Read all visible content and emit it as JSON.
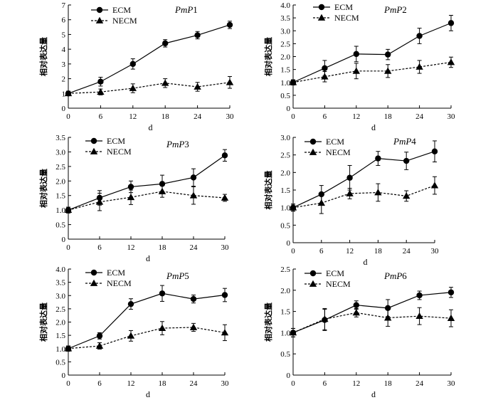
{
  "chart_data": [
    {
      "type": "line",
      "title_prefix": "PmP",
      "title_num": "1",
      "xlabel": "d",
      "ylabel": "相对表达量",
      "x": [
        0,
        6,
        12,
        18,
        24,
        30
      ],
      "xlim": [
        0,
        30
      ],
      "ylim": [
        0,
        7
      ],
      "yticks": [
        "0",
        "1",
        "2",
        "3",
        "4",
        "5",
        "6",
        "7"
      ],
      "xticks": [
        "0",
        "6",
        "12",
        "18",
        "24",
        "30"
      ],
      "series": [
        {
          "name": "ECM",
          "marker": "circle",
          "dash": "solid",
          "values": [
            1.0,
            1.8,
            3.0,
            4.4,
            4.95,
            5.65
          ],
          "errors": [
            0.15,
            0.3,
            0.35,
            0.25,
            0.25,
            0.25
          ]
        },
        {
          "name": "NECM",
          "marker": "triangle",
          "dash": "dashed",
          "values": [
            1.0,
            1.1,
            1.35,
            1.7,
            1.45,
            1.75
          ],
          "errors": [
            0.15,
            0.2,
            0.3,
            0.3,
            0.3,
            0.4
          ]
        }
      ]
    },
    {
      "type": "line",
      "title_prefix": "PmP",
      "title_num": "2",
      "xlabel": "d",
      "ylabel": "相对表达量",
      "x": [
        0,
        6,
        12,
        18,
        24,
        30
      ],
      "xlim": [
        0,
        30
      ],
      "ylim": [
        0,
        4
      ],
      "yticks": [
        "0",
        "0.5",
        "1.0",
        "1.5",
        "2.0",
        "2.5",
        "3.0",
        "3.5",
        "4.0"
      ],
      "xticks": [
        "0",
        "6",
        "12",
        "18",
        "24",
        "30"
      ],
      "series": [
        {
          "name": "ECM",
          "marker": "circle",
          "dash": "solid",
          "values": [
            1.0,
            1.55,
            2.1,
            2.08,
            2.8,
            3.3
          ],
          "errors": [
            0.1,
            0.3,
            0.3,
            0.2,
            0.3,
            0.3
          ]
        },
        {
          "name": "NECM",
          "marker": "triangle",
          "dash": "dashed",
          "values": [
            1.0,
            1.22,
            1.44,
            1.44,
            1.6,
            1.78
          ],
          "errors": [
            0.1,
            0.2,
            0.3,
            0.25,
            0.25,
            0.2
          ]
        }
      ]
    },
    {
      "type": "line",
      "title_prefix": "PmP",
      "title_num": "3",
      "xlabel": "d",
      "ylabel": "相对表达量",
      "x": [
        0,
        6,
        12,
        18,
        24,
        30
      ],
      "xlim": [
        0,
        30
      ],
      "ylim": [
        0,
        3.5
      ],
      "yticks": [
        "0",
        "0.5",
        "1.0",
        "1.5",
        "2.0",
        "2.5",
        "3.0",
        "3.5"
      ],
      "xticks": [
        "0",
        "6",
        "12",
        "18",
        "24",
        "30"
      ],
      "series": [
        {
          "name": "ECM",
          "marker": "circle",
          "dash": "solid",
          "values": [
            1.0,
            1.42,
            1.8,
            1.9,
            2.12,
            2.88
          ],
          "errors": [
            0.1,
            0.25,
            0.2,
            0.3,
            0.3,
            0.2
          ]
        },
        {
          "name": "NECM",
          "marker": "triangle",
          "dash": "dashed",
          "values": [
            1.0,
            1.28,
            1.44,
            1.64,
            1.5,
            1.42
          ],
          "errors": [
            0.1,
            0.3,
            0.25,
            0.2,
            0.3,
            0.12
          ]
        }
      ]
    },
    {
      "type": "line",
      "title_prefix": "PmP",
      "title_num": "4",
      "xlabel": "d",
      "ylabel": "相对表达量",
      "x": [
        0,
        6,
        12,
        18,
        24,
        30
      ],
      "xlim": [
        0,
        30
      ],
      "ylim": [
        0,
        3.0
      ],
      "yticks": [
        "0",
        "0.5",
        "1.0",
        "1.5",
        "2.0",
        "2.5",
        "3.0"
      ],
      "xticks": [
        "0",
        "6",
        "12",
        "18",
        "24",
        "30"
      ],
      "series": [
        {
          "name": "ECM",
          "marker": "circle",
          "dash": "solid",
          "values": [
            1.0,
            1.38,
            1.85,
            2.4,
            2.33,
            2.6
          ],
          "errors": [
            0.1,
            0.25,
            0.35,
            0.2,
            0.25,
            0.3
          ]
        },
        {
          "name": "NECM",
          "marker": "triangle",
          "dash": "dashed",
          "values": [
            1.0,
            1.13,
            1.4,
            1.43,
            1.33,
            1.63
          ],
          "errors": [
            0.1,
            0.3,
            0.15,
            0.25,
            0.15,
            0.25
          ]
        }
      ]
    },
    {
      "type": "line",
      "title_prefix": "PmP",
      "title_num": "5",
      "xlabel": "d",
      "ylabel": "相对表达量",
      "x": [
        0,
        6,
        12,
        18,
        24,
        30
      ],
      "xlim": [
        0,
        30
      ],
      "ylim": [
        0,
        4.0
      ],
      "yticks": [
        "0",
        "0.5",
        "1.0",
        "1.5",
        "2.0",
        "2.5",
        "3.0",
        "3.5",
        "4.0"
      ],
      "xticks": [
        "0",
        "6",
        "12",
        "18",
        "24",
        "30"
      ],
      "series": [
        {
          "name": "ECM",
          "marker": "circle",
          "dash": "solid",
          "values": [
            1.0,
            1.48,
            2.68,
            3.08,
            2.87,
            3.02
          ],
          "errors": [
            0.1,
            0.12,
            0.2,
            0.3,
            0.15,
            0.25
          ]
        },
        {
          "name": "NECM",
          "marker": "triangle",
          "dash": "dashed",
          "values": [
            1.0,
            1.1,
            1.48,
            1.77,
            1.8,
            1.6
          ],
          "errors": [
            0.1,
            0.12,
            0.2,
            0.25,
            0.15,
            0.3
          ]
        }
      ]
    },
    {
      "type": "line",
      "title_prefix": "PmP",
      "title_num": "6",
      "xlabel": "d",
      "ylabel": "相对表达量",
      "x": [
        0,
        6,
        12,
        18,
        24,
        30
      ],
      "xlim": [
        0,
        30
      ],
      "ylim": [
        0,
        2.5
      ],
      "yticks": [
        "0",
        "0.5",
        "1.0",
        "1.5",
        "2.0",
        "2.5"
      ],
      "xticks": [
        "0",
        "6",
        "12",
        "18",
        "24",
        "30"
      ],
      "series": [
        {
          "name": "ECM",
          "marker": "circle",
          "dash": "solid",
          "values": [
            1.0,
            1.3,
            1.65,
            1.58,
            1.88,
            1.95
          ],
          "errors": [
            0.1,
            0.25,
            0.1,
            0.2,
            0.1,
            0.12
          ]
        },
        {
          "name": "NECM",
          "marker": "triangle",
          "dash": "dashed",
          "values": [
            1.0,
            1.32,
            1.47,
            1.35,
            1.39,
            1.34
          ],
          "errors": [
            0.1,
            0.25,
            0.1,
            0.2,
            0.2,
            0.2
          ]
        }
      ]
    }
  ]
}
